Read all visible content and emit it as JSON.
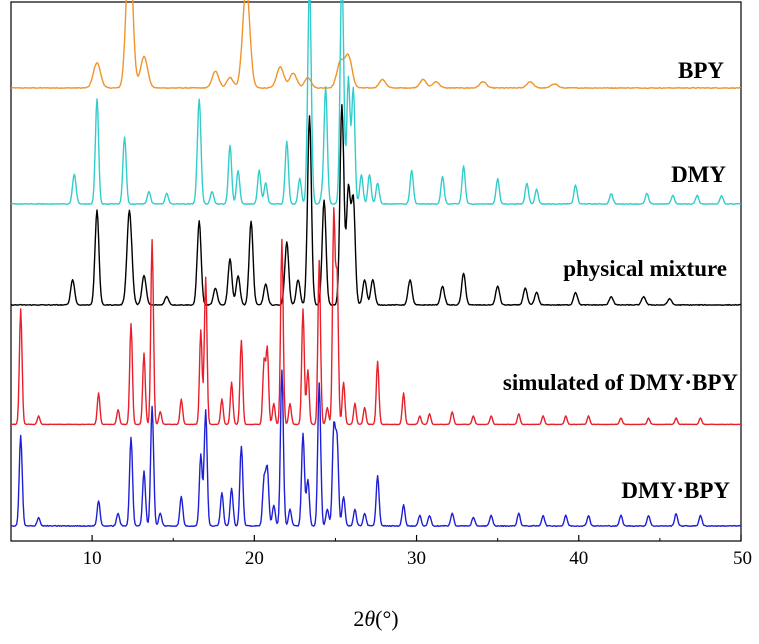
{
  "chart_data": {
    "type": "line",
    "title": "",
    "xlabel_main": "2",
    "xlabel_italic": "θ",
    "xlabel_unit": "(°)",
    "ylabel": "",
    "xlim": [
      5,
      50
    ],
    "x_ticks": [
      10,
      20,
      30,
      40,
      50
    ],
    "x_tick_labels": [
      "10",
      "20",
      "30",
      "40",
      "50"
    ],
    "grid": false,
    "legend": "none; series labeled inline at right",
    "series": [
      {
        "name": "BPY",
        "color": "#f0942a",
        "baseline": 0.5,
        "scale": 2.1,
        "noise": 0.18,
        "peaks": [
          [
            10.3,
            12,
            0.22
          ],
          [
            12.3,
            70,
            0.2
          ],
          [
            13.2,
            15,
            0.22
          ],
          [
            17.6,
            8,
            0.2
          ],
          [
            18.5,
            5,
            0.2
          ],
          [
            19.5,
            48,
            0.22
          ],
          [
            21.6,
            10,
            0.22
          ],
          [
            22.4,
            7,
            0.22
          ],
          [
            23.3,
            5,
            0.2
          ],
          [
            25.3,
            12,
            0.22
          ],
          [
            25.8,
            15,
            0.22
          ],
          [
            27.9,
            4,
            0.2
          ],
          [
            30.4,
            4,
            0.2
          ],
          [
            31.2,
            3,
            0.2
          ],
          [
            34.1,
            3,
            0.2
          ],
          [
            37.0,
            3,
            0.2
          ],
          [
            38.5,
            2,
            0.2
          ]
        ]
      },
      {
        "name": "DMY",
        "color": "#33cccc",
        "baseline": 0.5,
        "scale": 2.1,
        "noise": 0.18,
        "peaks": [
          [
            8.9,
            14,
            0.11
          ],
          [
            10.3,
            50,
            0.1
          ],
          [
            12.0,
            32,
            0.1
          ],
          [
            13.5,
            6,
            0.1
          ],
          [
            14.6,
            5,
            0.1
          ],
          [
            16.6,
            50,
            0.11
          ],
          [
            17.4,
            6,
            0.1
          ],
          [
            18.5,
            28,
            0.1
          ],
          [
            19.0,
            16,
            0.1
          ],
          [
            20.3,
            16,
            0.1
          ],
          [
            20.7,
            10,
            0.1
          ],
          [
            22.0,
            30,
            0.1
          ],
          [
            22.8,
            12,
            0.1
          ],
          [
            23.4,
            105,
            0.11
          ],
          [
            24.2,
            5,
            0.1
          ],
          [
            24.4,
            55,
            0.1
          ],
          [
            25.4,
            110,
            0.11
          ],
          [
            25.8,
            60,
            0.1
          ],
          [
            26.1,
            55,
            0.1
          ],
          [
            26.6,
            14,
            0.1
          ],
          [
            27.1,
            14,
            0.1
          ],
          [
            27.6,
            10,
            0.1
          ],
          [
            29.7,
            16,
            0.1
          ],
          [
            31.6,
            13,
            0.1
          ],
          [
            32.9,
            18,
            0.1
          ],
          [
            35.0,
            12,
            0.1
          ],
          [
            36.8,
            10,
            0.1
          ],
          [
            37.4,
            7,
            0.1
          ],
          [
            39.8,
            9,
            0.1
          ],
          [
            42.0,
            5,
            0.1
          ],
          [
            44.2,
            5,
            0.1
          ],
          [
            45.8,
            4,
            0.1
          ],
          [
            47.3,
            4,
            0.1
          ],
          [
            48.8,
            4,
            0.1
          ]
        ]
      },
      {
        "name": "physical mixture",
        "color": "#000000",
        "baseline": 0.5,
        "scale": 2.1,
        "noise": 0.18,
        "peaks": [
          [
            8.8,
            12,
            0.12
          ],
          [
            10.3,
            45,
            0.12
          ],
          [
            12.3,
            45,
            0.15
          ],
          [
            13.2,
            14,
            0.13
          ],
          [
            14.6,
            4,
            0.12
          ],
          [
            16.6,
            40,
            0.12
          ],
          [
            17.6,
            8,
            0.12
          ],
          [
            18.5,
            22,
            0.12
          ],
          [
            19.0,
            14,
            0.12
          ],
          [
            19.8,
            40,
            0.12
          ],
          [
            20.7,
            10,
            0.12
          ],
          [
            22.0,
            30,
            0.12
          ],
          [
            22.7,
            12,
            0.12
          ],
          [
            23.4,
            90,
            0.12
          ],
          [
            24.3,
            50,
            0.12
          ],
          [
            25.4,
            95,
            0.12
          ],
          [
            25.8,
            55,
            0.12
          ],
          [
            26.1,
            50,
            0.12
          ],
          [
            26.8,
            12,
            0.12
          ],
          [
            27.3,
            12,
            0.12
          ],
          [
            29.6,
            12,
            0.12
          ],
          [
            31.6,
            9,
            0.12
          ],
          [
            32.9,
            15,
            0.12
          ],
          [
            35.0,
            9,
            0.12
          ],
          [
            36.7,
            8,
            0.12
          ],
          [
            37.4,
            6,
            0.12
          ],
          [
            39.8,
            6,
            0.12
          ],
          [
            42.0,
            4,
            0.12
          ],
          [
            44.0,
            4,
            0.12
          ],
          [
            45.6,
            3,
            0.12
          ]
        ]
      },
      {
        "name": "simulated of DMY·BPY",
        "color": "#e8202a",
        "baseline": 0.3,
        "scale": 2.1,
        "noise": 0.08,
        "peaks": [
          [
            5.6,
            55,
            0.08
          ],
          [
            6.7,
            4,
            0.08
          ],
          [
            10.4,
            15,
            0.08
          ],
          [
            11.6,
            7,
            0.08
          ],
          [
            12.4,
            48,
            0.08
          ],
          [
            13.2,
            34,
            0.08
          ],
          [
            13.7,
            88,
            0.08
          ],
          [
            14.2,
            6,
            0.08
          ],
          [
            15.5,
            12,
            0.08
          ],
          [
            16.7,
            45,
            0.08
          ],
          [
            17.0,
            70,
            0.08
          ],
          [
            18.0,
            12,
            0.08
          ],
          [
            18.6,
            20,
            0.08
          ],
          [
            19.2,
            40,
            0.08
          ],
          [
            20.6,
            30,
            0.08
          ],
          [
            20.8,
            36,
            0.08
          ],
          [
            21.2,
            10,
            0.08
          ],
          [
            21.7,
            88,
            0.08
          ],
          [
            22.2,
            10,
            0.08
          ],
          [
            23.0,
            55,
            0.08
          ],
          [
            23.3,
            26,
            0.08
          ],
          [
            24.0,
            78,
            0.08
          ],
          [
            24.5,
            8,
            0.08
          ],
          [
            24.9,
            100,
            0.08
          ],
          [
            25.1,
            70,
            0.08
          ],
          [
            25.5,
            20,
            0.08
          ],
          [
            26.2,
            10,
            0.08
          ],
          [
            26.8,
            8,
            0.08
          ],
          [
            27.6,
            30,
            0.08
          ],
          [
            29.2,
            15,
            0.08
          ],
          [
            30.2,
            4,
            0.08
          ],
          [
            30.8,
            5,
            0.08
          ],
          [
            32.2,
            6,
            0.08
          ],
          [
            33.5,
            4,
            0.08
          ],
          [
            34.6,
            4,
            0.08
          ],
          [
            36.3,
            5,
            0.08
          ],
          [
            37.8,
            4,
            0.08
          ],
          [
            39.2,
            4,
            0.08
          ],
          [
            40.6,
            4,
            0.08
          ],
          [
            42.6,
            3,
            0.08
          ],
          [
            44.3,
            3,
            0.08
          ],
          [
            46.0,
            3,
            0.08
          ],
          [
            47.5,
            3,
            0.08
          ]
        ]
      },
      {
        "name": "DMY·BPY",
        "color": "#1f1fd6",
        "baseline": 0.5,
        "scale": 2.1,
        "noise": 0.2,
        "peaks": [
          [
            5.6,
            43,
            0.09
          ],
          [
            6.7,
            4,
            0.09
          ],
          [
            10.4,
            12,
            0.09
          ],
          [
            11.6,
            6,
            0.09
          ],
          [
            12.4,
            42,
            0.09
          ],
          [
            13.2,
            26,
            0.09
          ],
          [
            13.7,
            57,
            0.09
          ],
          [
            14.2,
            6,
            0.09
          ],
          [
            15.5,
            14,
            0.09
          ],
          [
            16.7,
            34,
            0.09
          ],
          [
            17.0,
            55,
            0.09
          ],
          [
            18.0,
            16,
            0.09
          ],
          [
            18.6,
            18,
            0.09
          ],
          [
            19.2,
            38,
            0.09
          ],
          [
            20.6,
            22,
            0.09
          ],
          [
            20.8,
            27,
            0.09
          ],
          [
            21.2,
            10,
            0.09
          ],
          [
            21.7,
            74,
            0.09
          ],
          [
            22.2,
            8,
            0.09
          ],
          [
            23.0,
            44,
            0.09
          ],
          [
            23.3,
            22,
            0.09
          ],
          [
            24.0,
            68,
            0.09
          ],
          [
            24.5,
            8,
            0.09
          ],
          [
            24.9,
            46,
            0.09
          ],
          [
            25.1,
            40,
            0.09
          ],
          [
            25.5,
            14,
            0.09
          ],
          [
            26.2,
            8,
            0.09
          ],
          [
            26.8,
            6,
            0.09
          ],
          [
            27.6,
            24,
            0.09
          ],
          [
            29.2,
            10,
            0.09
          ],
          [
            30.2,
            5,
            0.09
          ],
          [
            30.8,
            5,
            0.09
          ],
          [
            32.2,
            6,
            0.09
          ],
          [
            33.5,
            4,
            0.09
          ],
          [
            34.6,
            5,
            0.09
          ],
          [
            36.3,
            6,
            0.09
          ],
          [
            37.8,
            5,
            0.09
          ],
          [
            39.2,
            5,
            0.09
          ],
          [
            40.6,
            5,
            0.09
          ],
          [
            42.6,
            5,
            0.09
          ],
          [
            44.3,
            5,
            0.09
          ],
          [
            46.0,
            6,
            0.09
          ],
          [
            47.5,
            5,
            0.09
          ]
        ]
      }
    ]
  }
}
